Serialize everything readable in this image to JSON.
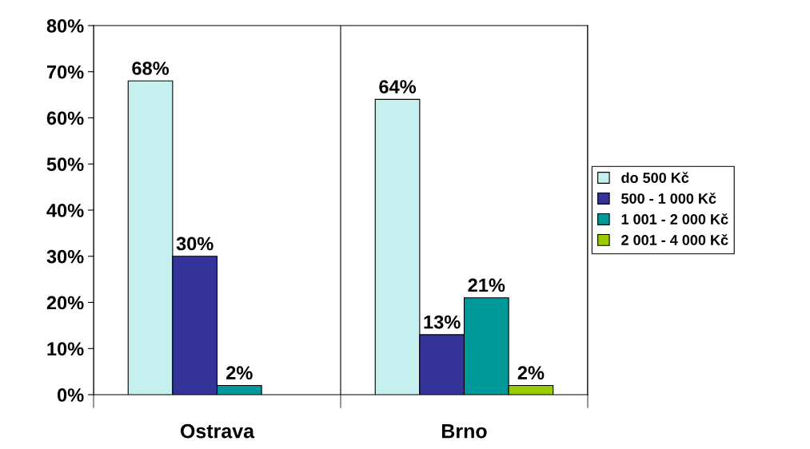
{
  "chart_data": {
    "type": "bar",
    "categories": [
      "Ostrava",
      "Brno"
    ],
    "series": [
      {
        "name": "do 500 Kč",
        "color": "#c6f0f0",
        "values": [
          68,
          64
        ],
        "value_labels": [
          "68%",
          "64%"
        ]
      },
      {
        "name": "500 - 1 000 Kč",
        "color": "#333399",
        "values": [
          30,
          13
        ],
        "value_labels": [
          "30%",
          "13%"
        ]
      },
      {
        "name": "1 001 - 2 000 Kč",
        "color": "#009999",
        "values": [
          2,
          21
        ],
        "value_labels": [
          "2%",
          "21%"
        ]
      },
      {
        "name": "2 001 - 4 000 Kč",
        "color": "#99cc00",
        "values": [
          null,
          2
        ],
        "value_labels": [
          null,
          "2%"
        ]
      }
    ],
    "ylim": [
      0,
      80
    ],
    "yticks": [
      {
        "value": 0,
        "label": "0%"
      },
      {
        "value": 10,
        "label": "10%"
      },
      {
        "value": 20,
        "label": "20%"
      },
      {
        "value": 30,
        "label": "30%"
      },
      {
        "value": 40,
        "label": "40%"
      },
      {
        "value": 50,
        "label": "50%"
      },
      {
        "value": 60,
        "label": "60%"
      },
      {
        "value": 70,
        "label": "70%"
      },
      {
        "value": 80,
        "label": "80%"
      }
    ],
    "grid": "x",
    "legend": "right"
  }
}
